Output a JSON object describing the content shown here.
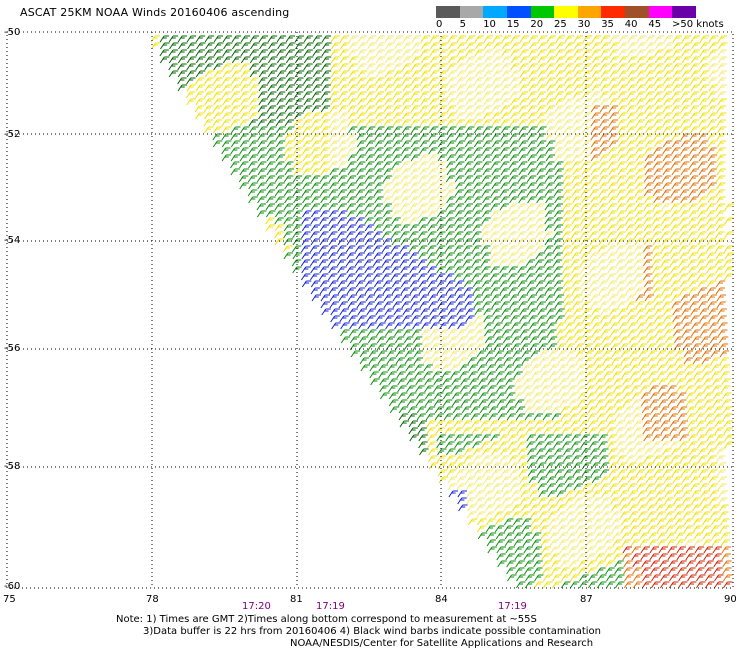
{
  "title": "ASCAT 25KM NOAA Winds 20160406 ascending",
  "scale": {
    "labels": [
      "0",
      "5",
      "10",
      "15",
      "20",
      "25",
      "30",
      "35",
      "40",
      "45",
      ">50 knots"
    ],
    "colors": [
      "#5a5a5a",
      "#a8a8a8",
      "#00a8ff",
      "#0050ff",
      "#00c800",
      "#ffff00",
      "#ffa500",
      "#ff2a00",
      "#a05028",
      "#ff00ff",
      "#6a00a8"
    ]
  },
  "map": {
    "lat_labels": [
      "-50",
      "-52",
      "-54",
      "-56",
      "-58",
      "-60"
    ],
    "lon_labels": [
      "75",
      "78",
      "81",
      "84",
      "87",
      "90"
    ],
    "time_labels": [
      "17:20",
      "17:19",
      "17:19"
    ]
  },
  "notes": {
    "line1": "Note: 1) Times are GMT 2)Times along bottom correspond to measurement at ~55S",
    "line2": "3)Data buffer is 22 hrs from 20160406 4) Black wind barbs indicate possible contamination",
    "line3": "NOAA/NESDIS/Center for Satellite Applications and Research"
  },
  "colors": {
    "green": "#0a8f0a",
    "dark_green": "#006400",
    "blue": "#1020d0",
    "yellow": "#f0e000",
    "pale_yellow": "#f5ea6a",
    "orange": "#e07000",
    "red": "#d02000"
  }
}
